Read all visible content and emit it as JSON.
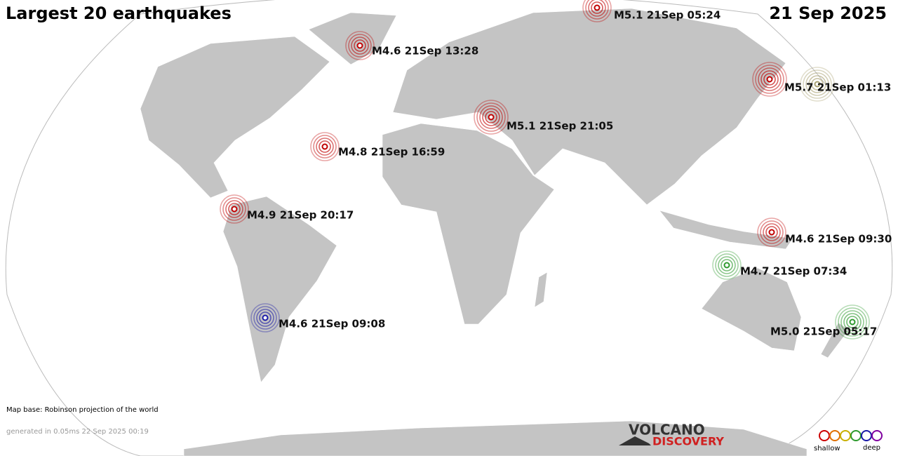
{
  "header": {
    "title": "Largest 20 earthquakes",
    "date": "21 Sep 2025"
  },
  "quakes": [
    {
      "label": "M5.1 21Sep 05:24",
      "color": "#c00000"
    },
    {
      "label": "M4.6 21Sep 13:28",
      "color": "#c00000"
    },
    {
      "label": "M5.7 21Sep 01:13",
      "color": "#c00000"
    },
    {
      "label": "M5.1 21Sep 21:05",
      "color": "#c00000"
    },
    {
      "label": "M4.8 21Sep 16:59",
      "color": "#c00000"
    },
    {
      "label": "M4.9 21Sep 20:17",
      "color": "#c00000"
    },
    {
      "label": "M4.6 21Sep 09:30",
      "color": "#c00000"
    },
    {
      "label": "M4.7 21Sep 07:34",
      "color": "#2e9a2e"
    },
    {
      "label": "M4.6 21Sep 09:08",
      "color": "#1a1aa8"
    },
    {
      "label": "M5.0 21Sep 05:17",
      "color": "#2e9a2e"
    }
  ],
  "footer": {
    "map_base": "Map base: Robinson projection of the world",
    "generated": "generated in 0.05ms 22 Sep 2025 00:19",
    "logo_top": "VOLCANO",
    "logo_bottom": "DISCOVERY",
    "legend_shallow": "shallow",
    "legend_deep": "deep"
  }
}
